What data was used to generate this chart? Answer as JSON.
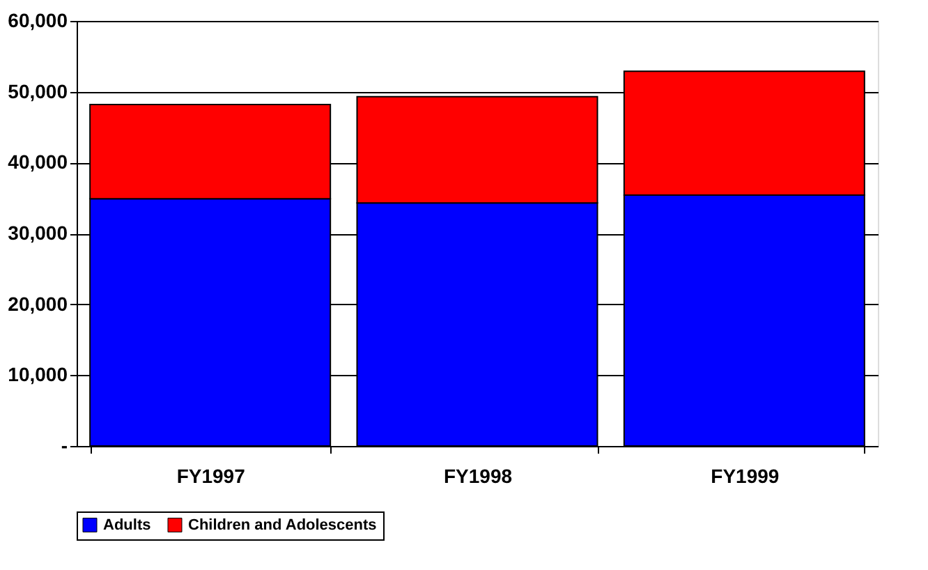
{
  "chart_data": {
    "type": "bar",
    "stacked": true,
    "categories": [
      "FY1997",
      "FY1998",
      "FY1999"
    ],
    "series": [
      {
        "name": "Adults",
        "color": "#0000ff",
        "values": [
          34900,
          34300,
          35400
        ]
      },
      {
        "name": "Children and Adolescents",
        "color": "#ff0000",
        "values": [
          13300,
          15000,
          17500
        ]
      }
    ],
    "ylim": [
      0,
      60000
    ],
    "yticks": [
      {
        "value": 0,
        "label": "-"
      },
      {
        "value": 10000,
        "label": "10,000"
      },
      {
        "value": 20000,
        "label": "20,000"
      },
      {
        "value": 30000,
        "label": "30,000"
      },
      {
        "value": 40000,
        "label": "40,000"
      },
      {
        "value": 50000,
        "label": "50,000"
      },
      {
        "value": 60000,
        "label": "60,000"
      }
    ],
    "grid": "y",
    "legend": "bottom"
  }
}
